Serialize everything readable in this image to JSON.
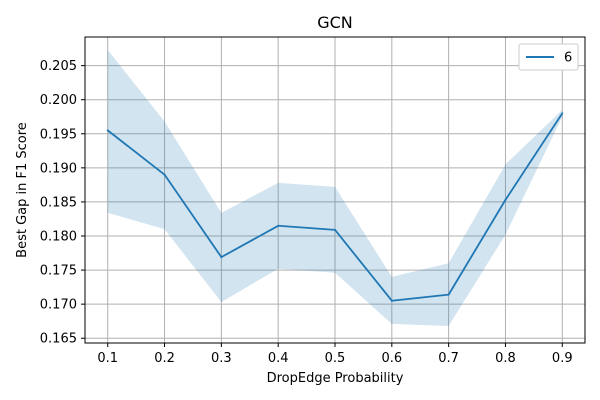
{
  "chart_data": {
    "type": "line",
    "title": "GCN",
    "xlabel": "DropEdge Probability",
    "ylabel": "Best Gap in F1 Score",
    "x": [
      0.1,
      0.2,
      0.3,
      0.4,
      0.5,
      0.6,
      0.7,
      0.8,
      0.9
    ],
    "x_ticks": [
      "0.1",
      "0.2",
      "0.3",
      "0.4",
      "0.5",
      "0.6",
      "0.7",
      "0.8",
      "0.9"
    ],
    "y_ticks": [
      "0.165",
      "0.170",
      "0.175",
      "0.180",
      "0.185",
      "0.190",
      "0.195",
      "0.200",
      "0.205"
    ],
    "xlim": [
      0.06,
      0.94
    ],
    "ylim": [
      0.1643,
      0.2092
    ],
    "grid": true,
    "legend_position": "top-right",
    "series": [
      {
        "name": "6",
        "color": "#1f77b4",
        "band_color": "#1f77b4",
        "values": [
          0.1955,
          0.189,
          0.1769,
          0.1815,
          0.1809,
          0.1705,
          0.1714,
          0.1853,
          0.198
        ],
        "upper": [
          0.2073,
          0.1968,
          0.1834,
          0.1878,
          0.1872,
          0.174,
          0.176,
          0.1905,
          0.1985
        ],
        "lower": [
          0.1834,
          0.181,
          0.1703,
          0.1752,
          0.1746,
          0.1671,
          0.1668,
          0.1802,
          0.1975
        ]
      }
    ]
  }
}
